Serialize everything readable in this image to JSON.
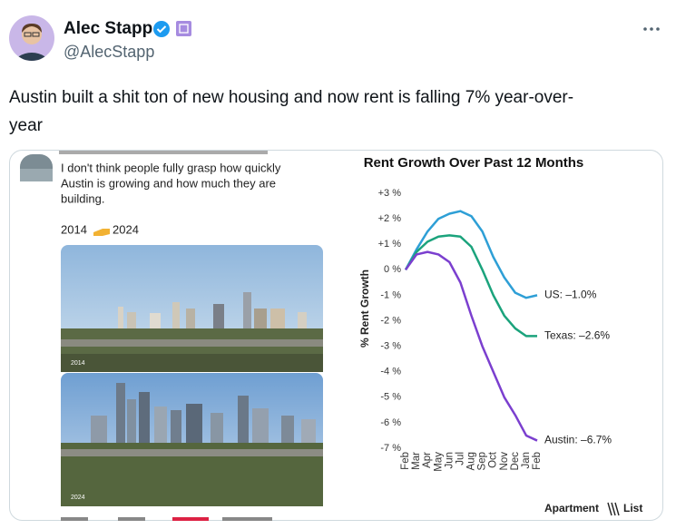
{
  "tweet": {
    "author_name": "Alec Stapp",
    "handle": "@AlecStapp",
    "text_lines": [
      "Austin built a shit ton of new housing and now rent is falling 7% year-over-",
      "year"
    ]
  },
  "quoted": {
    "text_lines": [
      "I don't think people fully grasp how quickly",
      "Austin is growing and how much they are",
      "building."
    ],
    "year_from": "2014",
    "year_to": "2024"
  },
  "chart": {
    "type": "line",
    "title": "Rent Growth Over Past 12 Months",
    "y_axis_label": "% Rent Growth",
    "source_word1": "Apartment",
    "source_word2": "List",
    "categories": [
      "Feb",
      "Mar",
      "Apr",
      "May",
      "Jun",
      "Jul",
      "Aug",
      "Sep",
      "Oct",
      "Nov",
      "Dec",
      "Jan",
      "Feb"
    ],
    "ylim": [
      -7,
      3
    ],
    "yticks": [
      {
        "value": 3,
        "label": "+3 %"
      },
      {
        "value": 2,
        "label": "+2 %"
      },
      {
        "value": 1,
        "label": "+1 %"
      },
      {
        "value": 0,
        "label": "0 %"
      },
      {
        "value": -1,
        "label": "-1 %"
      },
      {
        "value": -2,
        "label": "-2 %"
      },
      {
        "value": -3,
        "label": "-3 %"
      },
      {
        "value": -4,
        "label": "-4 %"
      },
      {
        "value": -5,
        "label": "-5 %"
      },
      {
        "value": -6,
        "label": "-6 %"
      },
      {
        "value": -7,
        "label": "-7 %"
      }
    ],
    "series": [
      {
        "name": "US",
        "color": "#2e9fd6",
        "end_label": "US: –1.0%",
        "values": [
          0,
          0.8,
          1.5,
          2.0,
          2.2,
          2.3,
          2.1,
          1.5,
          0.5,
          -0.3,
          -0.9,
          -1.1,
          -1.0
        ]
      },
      {
        "name": "Texas",
        "color": "#1ba37c",
        "end_label": "Texas: –2.6%",
        "values": [
          0,
          0.7,
          1.1,
          1.3,
          1.35,
          1.3,
          0.9,
          0,
          -1.0,
          -1.8,
          -2.3,
          -2.6,
          -2.6
        ]
      },
      {
        "name": "Austin",
        "color": "#7b3fcf",
        "end_label": "Austin: –6.7%",
        "values": [
          0,
          0.6,
          0.7,
          0.6,
          0.3,
          -0.5,
          -1.8,
          -3.0,
          -4.0,
          -5.0,
          -5.7,
          -6.5,
          -6.7
        ]
      }
    ]
  }
}
